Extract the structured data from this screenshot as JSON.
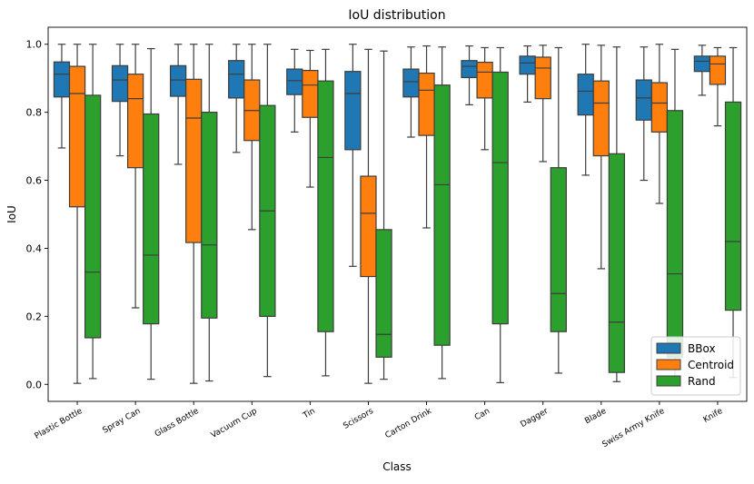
{
  "chart_data": {
    "type": "box",
    "title": "IoU distribution",
    "xlabel": "Class",
    "ylabel": "IoU",
    "ylim": [
      -0.05,
      1.05
    ],
    "yticks": [
      0.0,
      0.2,
      0.4,
      0.6,
      0.8,
      1.0
    ],
    "ytick_labels": [
      "0.0",
      "0.2",
      "0.4",
      "0.6",
      "0.8",
      "1.0"
    ],
    "grid": false,
    "legend_position": "bottom-right",
    "categories": [
      "Plastic Bottle",
      "Spray Can",
      "Glass Bottle",
      "Vacuum Cup",
      "Tin",
      "Scissors",
      "Carton Drink",
      "Can",
      "Dagger",
      "Blade",
      "Swiss Army Knife",
      "Knife"
    ],
    "series": [
      {
        "name": "BBox",
        "color": "#1f77b4",
        "boxes": [
          {
            "whislo": 0.695,
            "q1": 0.845,
            "med": 0.912,
            "q3": 0.948,
            "whishi": 1.0
          },
          {
            "whislo": 0.672,
            "q1": 0.832,
            "med": 0.895,
            "q3": 0.937,
            "whishi": 1.0
          },
          {
            "whislo": 0.647,
            "q1": 0.847,
            "med": 0.895,
            "q3": 0.937,
            "whishi": 1.0
          },
          {
            "whislo": 0.682,
            "q1": 0.842,
            "med": 0.912,
            "q3": 0.952,
            "whishi": 1.0
          },
          {
            "whislo": 0.742,
            "q1": 0.852,
            "med": 0.893,
            "q3": 0.927,
            "whishi": 0.985
          },
          {
            "whislo": 0.347,
            "q1": 0.69,
            "med": 0.855,
            "q3": 0.92,
            "whishi": 1.0
          },
          {
            "whislo": 0.727,
            "q1": 0.845,
            "med": 0.89,
            "q3": 0.927,
            "whishi": 0.992
          },
          {
            "whislo": 0.822,
            "q1": 0.902,
            "med": 0.935,
            "q3": 0.952,
            "whishi": 0.995
          },
          {
            "whislo": 0.83,
            "q1": 0.912,
            "med": 0.945,
            "q3": 0.965,
            "whishi": 0.995
          },
          {
            "whislo": 0.615,
            "q1": 0.792,
            "med": 0.862,
            "q3": 0.912,
            "whishi": 1.0
          },
          {
            "whislo": 0.6,
            "q1": 0.777,
            "med": 0.842,
            "q3": 0.895,
            "whishi": 0.992
          },
          {
            "whislo": 0.85,
            "q1": 0.92,
            "med": 0.95,
            "q3": 0.965,
            "whishi": 0.997
          }
        ]
      },
      {
        "name": "Centroid",
        "color": "#ff7f0e",
        "boxes": [
          {
            "whislo": 0.003,
            "q1": 0.522,
            "med": 0.855,
            "q3": 0.935,
            "whishi": 1.0
          },
          {
            "whislo": 0.225,
            "q1": 0.637,
            "med": 0.84,
            "q3": 0.912,
            "whishi": 1.0
          },
          {
            "whislo": 0.003,
            "q1": 0.417,
            "med": 0.783,
            "q3": 0.897,
            "whishi": 1.0
          },
          {
            "whislo": 0.455,
            "q1": 0.717,
            "med": 0.805,
            "q3": 0.895,
            "whishi": 1.0
          },
          {
            "whislo": 0.58,
            "q1": 0.785,
            "med": 0.88,
            "q3": 0.923,
            "whishi": 0.982
          },
          {
            "whislo": 0.003,
            "q1": 0.317,
            "med": 0.503,
            "q3": 0.612,
            "whishi": 0.985
          },
          {
            "whislo": 0.46,
            "q1": 0.732,
            "med": 0.865,
            "q3": 0.915,
            "whishi": 0.995
          },
          {
            "whislo": 0.69,
            "q1": 0.842,
            "med": 0.918,
            "q3": 0.947,
            "whishi": 0.99
          },
          {
            "whislo": 0.655,
            "q1": 0.84,
            "med": 0.93,
            "q3": 0.962,
            "whishi": 0.997
          },
          {
            "whislo": 0.34,
            "q1": 0.672,
            "med": 0.827,
            "q3": 0.892,
            "whishi": 0.997
          },
          {
            "whislo": 0.532,
            "q1": 0.742,
            "med": 0.827,
            "q3": 0.887,
            "whishi": 1.0
          },
          {
            "whislo": 0.76,
            "q1": 0.882,
            "med": 0.942,
            "q3": 0.965,
            "whishi": 0.99
          }
        ]
      },
      {
        "name": "Rand",
        "color": "#2ca02c",
        "boxes": [
          {
            "whislo": 0.017,
            "q1": 0.137,
            "med": 0.33,
            "q3": 0.85,
            "whishi": 1.0
          },
          {
            "whislo": 0.015,
            "q1": 0.178,
            "med": 0.38,
            "q3": 0.795,
            "whishi": 0.987
          },
          {
            "whislo": 0.01,
            "q1": 0.195,
            "med": 0.41,
            "q3": 0.8,
            "whishi": 1.0
          },
          {
            "whislo": 0.023,
            "q1": 0.2,
            "med": 0.51,
            "q3": 0.82,
            "whishi": 1.0
          },
          {
            "whislo": 0.025,
            "q1": 0.155,
            "med": 0.667,
            "q3": 0.892,
            "whishi": 0.985
          },
          {
            "whislo": 0.015,
            "q1": 0.08,
            "med": 0.147,
            "q3": 0.455,
            "whishi": 0.98
          },
          {
            "whislo": 0.017,
            "q1": 0.115,
            "med": 0.587,
            "q3": 0.88,
            "whishi": 0.992
          },
          {
            "whislo": 0.005,
            "q1": 0.178,
            "med": 0.652,
            "q3": 0.918,
            "whishi": 0.99
          },
          {
            "whislo": 0.033,
            "q1": 0.155,
            "med": 0.267,
            "q3": 0.637,
            "whishi": 0.99
          },
          {
            "whislo": 0.008,
            "q1": 0.035,
            "med": 0.183,
            "q3": 0.678,
            "whishi": 0.992
          },
          {
            "whislo": 0.02,
            "q1": 0.08,
            "med": 0.325,
            "q3": 0.805,
            "whishi": 0.985
          },
          {
            "whislo": 0.02,
            "q1": 0.218,
            "med": 0.42,
            "q3": 0.83,
            "whishi": 0.99
          }
        ]
      }
    ]
  }
}
